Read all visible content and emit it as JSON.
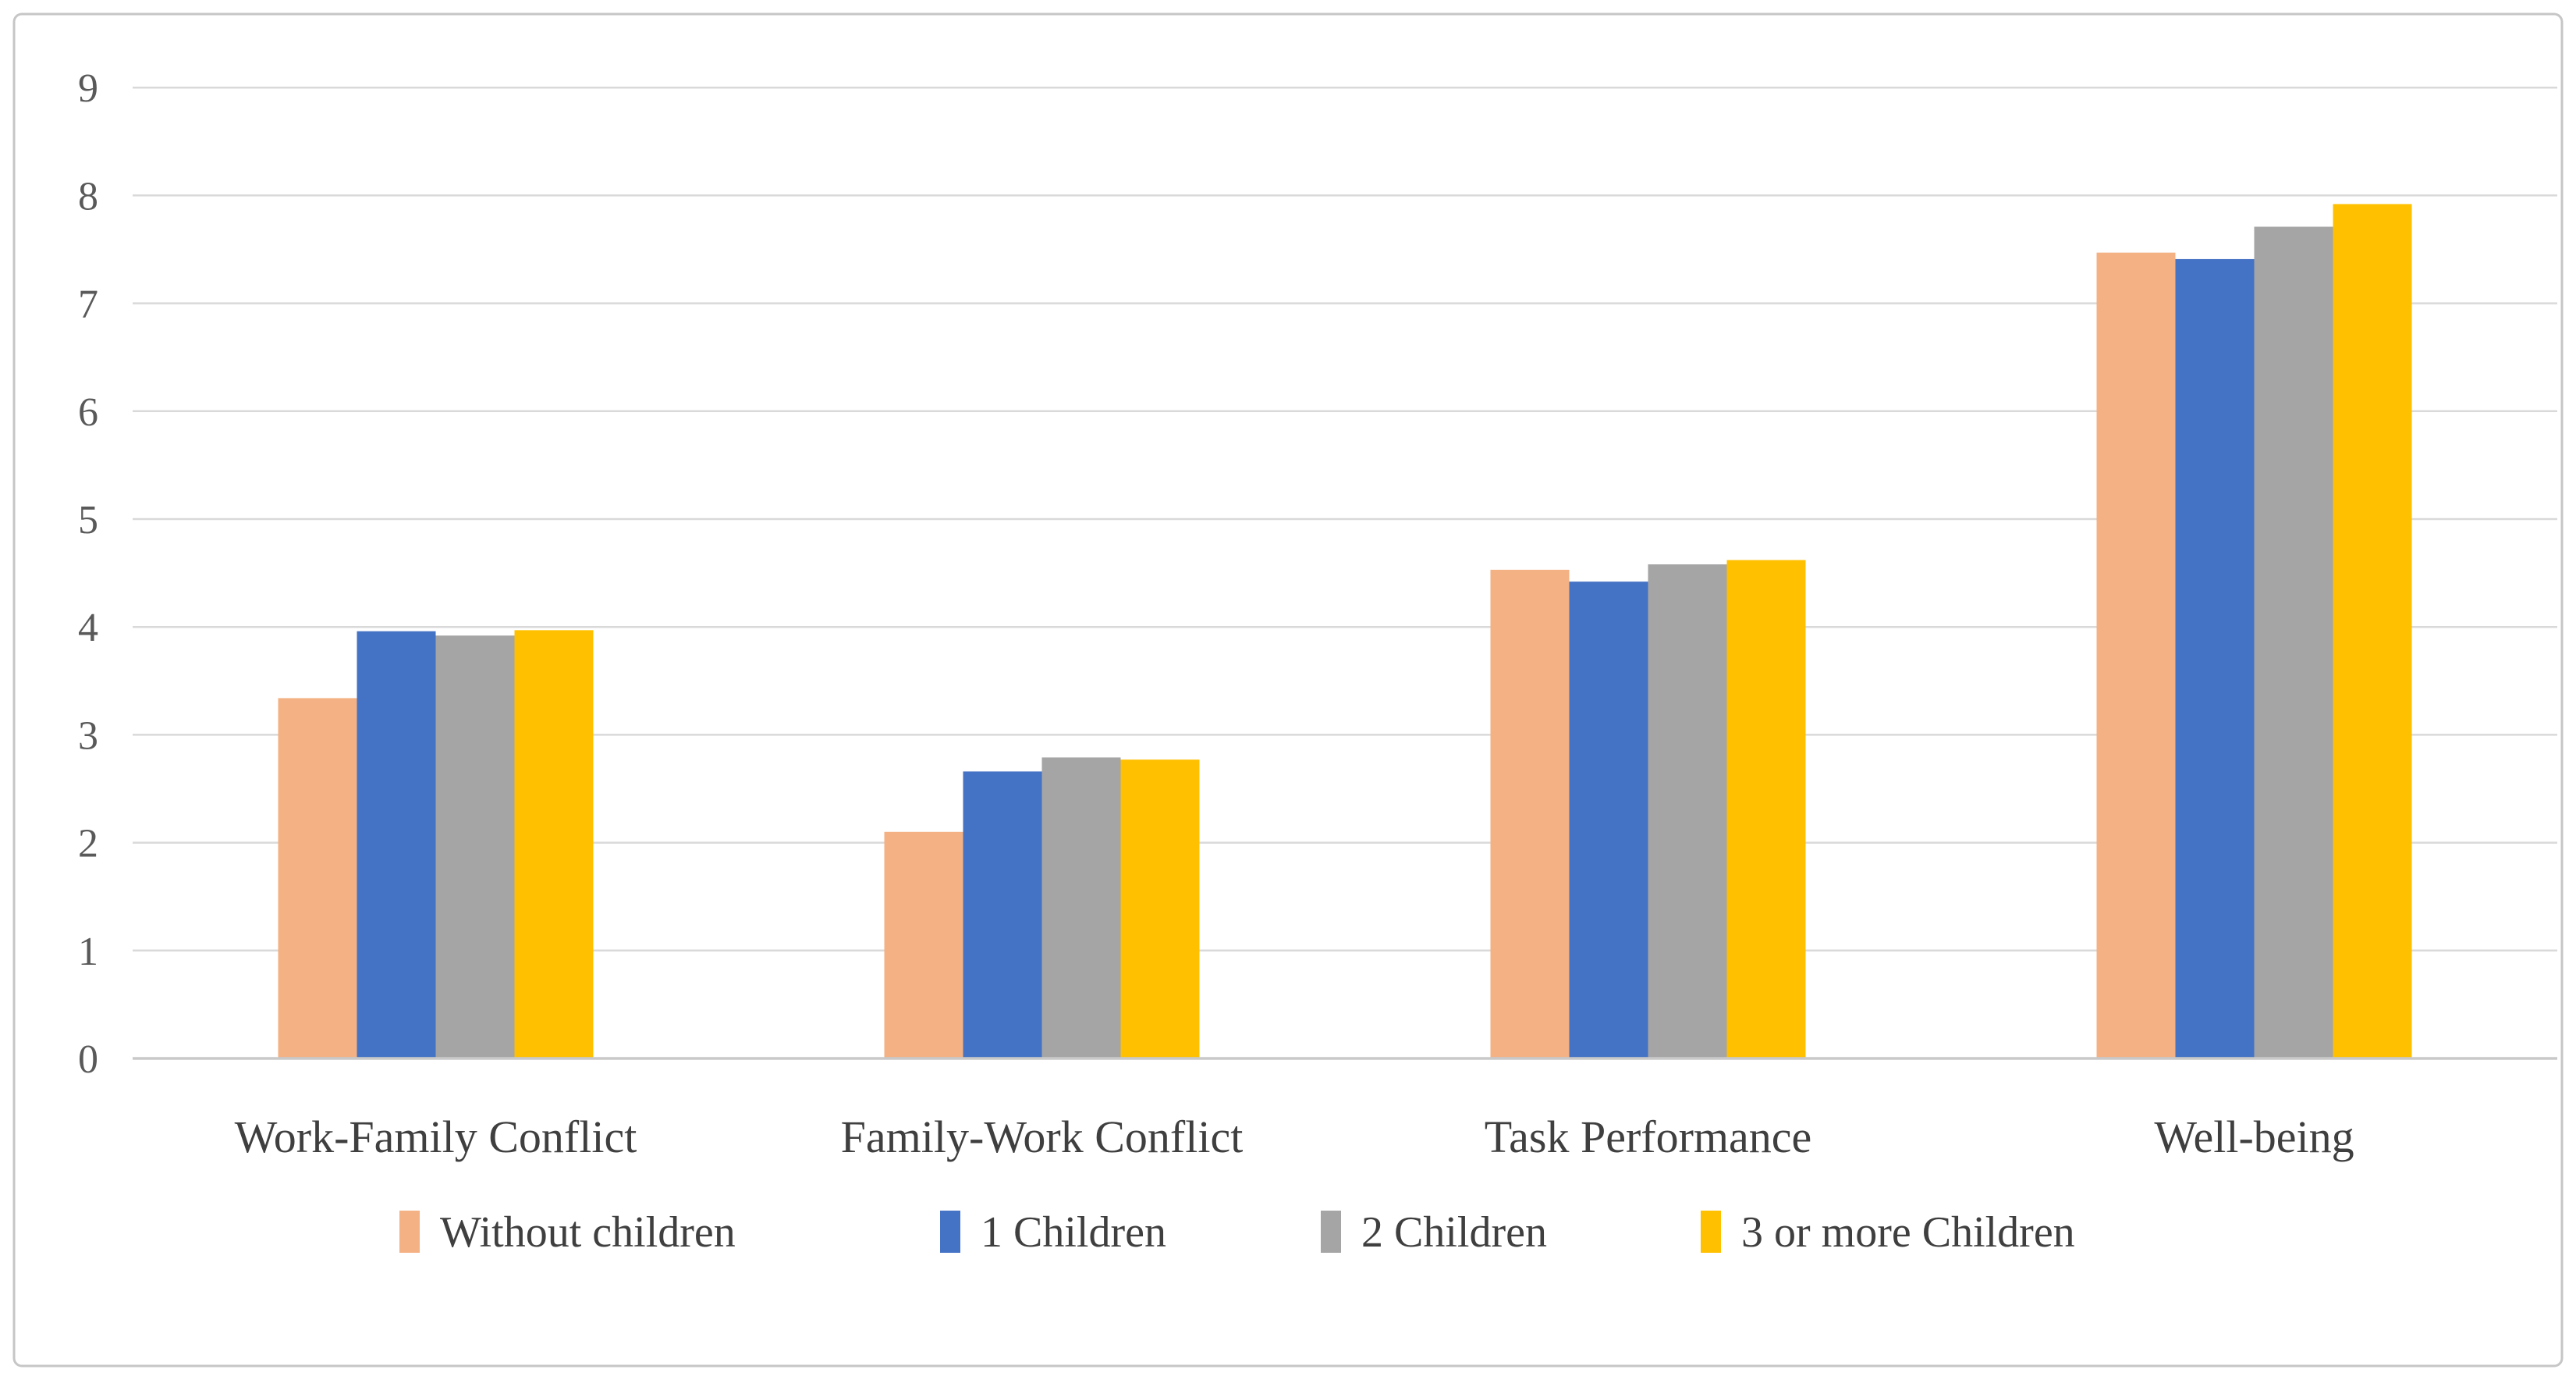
{
  "figure": {
    "background": "#ffffff",
    "border_color": "#c6c6c6"
  },
  "chart_data": {
    "type": "bar",
    "title": "",
    "categories": [
      "Work-Family Conflict",
      "Family-Work Conflict",
      "Task Performance",
      "Well-being"
    ],
    "series": [
      {
        "name": "Without children",
        "color": "#F4B183",
        "values": [
          3.34,
          2.1,
          4.53,
          7.47
        ]
      },
      {
        "name": "1 Children",
        "color": "#4472C4",
        "values": [
          3.96,
          2.66,
          4.42,
          7.41
        ]
      },
      {
        "name": "2 Children",
        "color": "#A5A5A5",
        "values": [
          3.92,
          2.79,
          4.58,
          7.71
        ]
      },
      {
        "name": "3 or more Children",
        "color": "#FFC000",
        "values": [
          3.97,
          2.77,
          4.62,
          7.92
        ]
      }
    ],
    "y_axis": {
      "min": 0,
      "max": 9,
      "step": 1,
      "tick_labels": [
        "0",
        "1",
        "2",
        "3",
        "4",
        "5",
        "6",
        "7",
        "8",
        "9"
      ]
    },
    "x_axis_label": "",
    "y_axis_label": "",
    "grid": true,
    "legend_position": "bottom",
    "colors": {
      "gridline": "#D9D9D9",
      "zero_axis_line": "#C9C9C9",
      "tick_text": "#595959",
      "category_text": "#3F3F3F",
      "legend_text": "#3F3F3F"
    }
  }
}
